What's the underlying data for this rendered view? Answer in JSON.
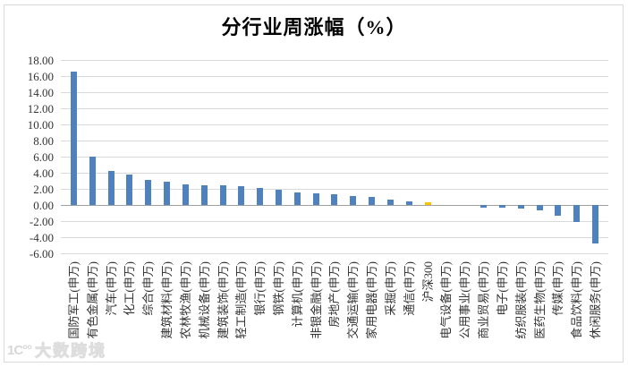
{
  "title": "分行业周涨幅（%）",
  "watermark": {
    "icon": "brand-logo-icon",
    "logo_glyph": "1C°°",
    "text": "大数跨境"
  },
  "colors": {
    "bar": "#4F81BD",
    "highlight": "#FFC000",
    "gridline": "#D9D9D9",
    "zero_axis": "#A0A0A0",
    "text": "#333333"
  },
  "chart_data": {
    "type": "bar",
    "title": "分行业周涨幅（%）",
    "categories": [
      "国防军工(申万)",
      "有色金属(申万)",
      "汽车(申万)",
      "化工(申万)",
      "综合(申万)",
      "建筑材料(申万)",
      "农林牧渔(申万)",
      "机械设备(申万)",
      "建筑装饰(申万)",
      "轻工制造(申万)",
      "银行(申万)",
      "钢铁(申万)",
      "计算机(申万)",
      "非银金融(申万)",
      "房地产(申万)",
      "交通运输(申万)",
      "家用电器(申万)",
      "采掘(申万)",
      "通信(申万)",
      "沪深300",
      "电气设备(申万)",
      "公用事业(申万)",
      "商业贸易(申万)",
      "电子(申万)",
      "纺织服装(申万)",
      "医药生物(申万)",
      "传媒(申万)",
      "食品饮料(申万)",
      "休闲服务(申万)"
    ],
    "values": [
      16.6,
      6.0,
      4.2,
      3.8,
      3.1,
      2.9,
      2.6,
      2.5,
      2.4,
      2.3,
      2.1,
      1.9,
      1.6,
      1.5,
      1.3,
      1.1,
      1.0,
      0.7,
      0.4,
      0.3,
      0.0,
      0.0,
      -0.3,
      -0.3,
      -0.4,
      -0.7,
      -1.3,
      -2.1,
      -4.8
    ],
    "highlight_category": "沪深300",
    "highlight_index": 19,
    "xlabel": "",
    "ylabel": "",
    "ylim": [
      -6,
      18
    ],
    "ytick_step": 2,
    "ytick_labels": [
      "18.00",
      "16.00",
      "14.00",
      "12.00",
      "10.00",
      "8.00",
      "6.00",
      "4.00",
      "2.00",
      "0.00",
      "-2.00",
      "-4.00",
      "-6.00"
    ],
    "grid": true,
    "legend": "none",
    "bar_color": "#4F81BD",
    "highlight_color": "#FFC000"
  }
}
